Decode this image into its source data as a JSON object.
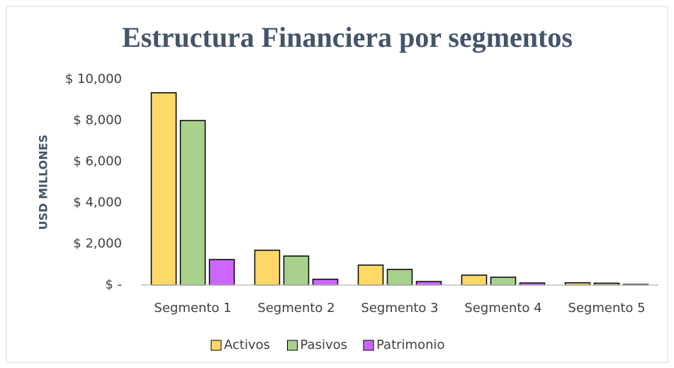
{
  "chart_data": {
    "type": "bar",
    "title": "Estructura Financiera por segmentos",
    "y_label": "USD MILLONES",
    "categories": [
      "Segmento 1",
      "Segmento 2",
      "Segmento 3",
      "Segmento 4",
      "Segmento 5"
    ],
    "series": [
      {
        "name": "Activos",
        "color": "#ffd966",
        "values": [
          9350,
          1690,
          970,
          480,
          110
        ]
      },
      {
        "name": "Pasivos",
        "color": "#a9d18e",
        "values": [
          8000,
          1410,
          760,
          380,
          90
        ]
      },
      {
        "name": "Patrimonio",
        "color": "#cc66ff",
        "values": [
          1240,
          280,
          170,
          100,
          30
        ]
      }
    ],
    "ylim": [
      0,
      10000
    ],
    "yticks": [
      {
        "value": 0,
        "label": "$ -"
      },
      {
        "value": 2000,
        "label": "$ 2,000"
      },
      {
        "value": 4000,
        "label": "$ 4,000"
      },
      {
        "value": 6000,
        "label": "$ 6,000"
      },
      {
        "value": 8000,
        "label": "$ 8,000"
      },
      {
        "value": 10000,
        "label": "$ 10,000"
      }
    ],
    "grid": false,
    "legend": "bottom"
  }
}
